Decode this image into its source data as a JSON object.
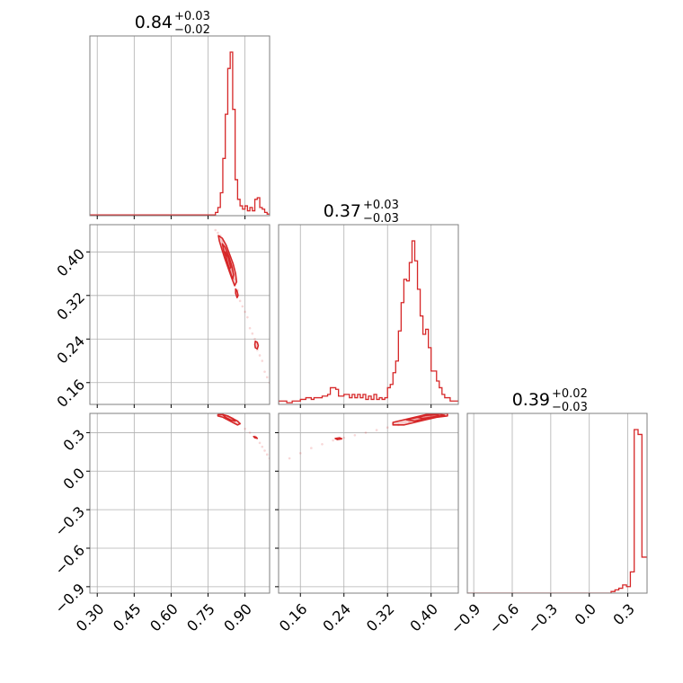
{
  "chart_data": {
    "type": "corner",
    "color": "#d62728",
    "grid": true,
    "params": [
      {
        "range": [
          0.27,
          1.0
        ],
        "ticks": [
          0.3,
          0.45,
          0.6,
          0.75,
          0.9
        ],
        "tick_labels": [
          "0.30",
          "0.45",
          "0.60",
          "0.75",
          "0.90"
        ],
        "title": {
          "value": "0.84",
          "upper": "+0.03",
          "lower": "−0.02"
        }
      },
      {
        "range": [
          0.12,
          0.45
        ],
        "ticks": [
          0.16,
          0.24,
          0.32,
          0.4
        ],
        "tick_labels": [
          "0.16",
          "0.24",
          "0.32",
          "0.40"
        ],
        "title": {
          "value": "0.37",
          "upper": "+0.03",
          "lower": "−0.03"
        }
      },
      {
        "range": [
          -0.95,
          0.45
        ],
        "ticks": [
          -0.9,
          -0.6,
          -0.3,
          0.0,
          0.3
        ],
        "tick_labels": [
          "−0.9",
          "−0.6",
          "−0.3",
          "0.0",
          "0.3"
        ],
        "title": {
          "value": "0.39",
          "upper": "+0.02",
          "lower": "−0.03"
        }
      }
    ],
    "histograms": [
      {
        "param": 0,
        "edges": [
          0.27,
          0.78,
          0.79,
          0.8,
          0.81,
          0.82,
          0.83,
          0.84,
          0.85,
          0.86,
          0.87,
          0.88,
          0.89,
          0.9,
          0.91,
          0.92,
          0.93,
          0.94,
          0.95,
          0.96,
          0.97,
          0.98,
          0.99,
          1.0
        ],
        "values": [
          0.005,
          0.02,
          0.05,
          0.14,
          0.35,
          0.62,
          0.9,
          1.0,
          0.65,
          0.22,
          0.1,
          0.06,
          0.04,
          0.06,
          0.03,
          0.05,
          0.03,
          0.1,
          0.11,
          0.05,
          0.04,
          0.02,
          0.01
        ]
      },
      {
        "param": 1,
        "edges": [
          0.12,
          0.125,
          0.13,
          0.135,
          0.14,
          0.145,
          0.15,
          0.155,
          0.16,
          0.165,
          0.17,
          0.175,
          0.18,
          0.185,
          0.19,
          0.195,
          0.2,
          0.205,
          0.21,
          0.215,
          0.22,
          0.225,
          0.23,
          0.235,
          0.24,
          0.245,
          0.25,
          0.255,
          0.26,
          0.265,
          0.27,
          0.275,
          0.28,
          0.285,
          0.29,
          0.295,
          0.3,
          0.305,
          0.31,
          0.315,
          0.32,
          0.325,
          0.33,
          0.335,
          0.34,
          0.345,
          0.35,
          0.355,
          0.36,
          0.365,
          0.37,
          0.375,
          0.38,
          0.385,
          0.39,
          0.395,
          0.4,
          0.405,
          0.41,
          0.415,
          0.42,
          0.425,
          0.43,
          0.435,
          0.44,
          0.445,
          0.45
        ],
        "values": [
          0.02,
          0.02,
          0.02,
          0.01,
          0.01,
          0.02,
          0.02,
          0.02,
          0.03,
          0.03,
          0.04,
          0.04,
          0.03,
          0.04,
          0.04,
          0.04,
          0.05,
          0.05,
          0.06,
          0.1,
          0.1,
          0.09,
          0.05,
          0.05,
          0.06,
          0.06,
          0.04,
          0.06,
          0.04,
          0.06,
          0.04,
          0.06,
          0.03,
          0.05,
          0.03,
          0.06,
          0.03,
          0.04,
          0.03,
          0.04,
          0.1,
          0.12,
          0.19,
          0.26,
          0.44,
          0.61,
          0.75,
          0.74,
          0.85,
          0.98,
          0.86,
          0.69,
          0.53,
          0.42,
          0.45,
          0.34,
          0.2,
          0.2,
          0.14,
          0.1,
          0.06,
          0.04,
          0.04,
          0.02,
          0.02,
          0.02
        ]
      },
      {
        "param": 2,
        "edges": [
          -0.95,
          0.17,
          0.2,
          0.23,
          0.26,
          0.29,
          0.32,
          0.35,
          0.38,
          0.41,
          0.44,
          0.45
        ],
        "values": [
          0.0,
          0.01,
          0.02,
          0.03,
          0.05,
          0.04,
          0.13,
          1.0,
          0.97,
          0.22,
          0.22
        ]
      }
    ],
    "panels_2d": [
      {
        "x_param": 0,
        "y_param": 1,
        "contours": [
          {
            "x": [
              0.792,
              0.808,
              0.824,
              0.838,
              0.852,
              0.862,
              0.866,
              0.858,
              0.846,
              0.832,
              0.818,
              0.806,
              0.796
            ],
            "y": [
              0.43,
              0.425,
              0.412,
              0.395,
              0.378,
              0.36,
              0.345,
              0.338,
              0.352,
              0.37,
              0.388,
              0.405,
              0.42
            ]
          },
          {
            "x": [
              0.808,
              0.82,
              0.834,
              0.846,
              0.854,
              0.85,
              0.838,
              0.826,
              0.814
            ],
            "y": [
              0.415,
              0.408,
              0.392,
              0.375,
              0.358,
              0.35,
              0.366,
              0.385,
              0.402
            ]
          },
          {
            "x": [
              0.82,
              0.832,
              0.842,
              0.836,
              0.826
            ],
            "y": [
              0.4,
              0.39,
              0.372,
              0.368,
              0.385
            ]
          },
          {
            "x": [
              0.862,
              0.868,
              0.872,
              0.868,
              0.862
            ],
            "y": [
              0.332,
              0.328,
              0.32,
              0.316,
              0.324
            ]
          },
          {
            "x": [
              0.942,
              0.95,
              0.954,
              0.95,
              0.942,
              0.94
            ],
            "y": [
              0.236,
              0.234,
              0.228,
              0.222,
              0.224,
              0.23
            ]
          }
        ],
        "samples": {
          "x": [
            0.78,
            0.79,
            0.8,
            0.81,
            0.82,
            0.83,
            0.84,
            0.85,
            0.86,
            0.87,
            0.88,
            0.89,
            0.9,
            0.91,
            0.92,
            0.93,
            0.94,
            0.95,
            0.96,
            0.97,
            0.98,
            0.99,
            1.0
          ],
          "y": [
            0.44,
            0.435,
            0.43,
            0.42,
            0.41,
            0.4,
            0.39,
            0.37,
            0.35,
            0.33,
            0.31,
            0.3,
            0.29,
            0.28,
            0.26,
            0.25,
            0.24,
            0.22,
            0.21,
            0.2,
            0.18,
            0.17,
            0.16
          ]
        }
      },
      {
        "x_param": 0,
        "y_param": 2,
        "contours": [
          {
            "x": [
              0.79,
              0.81,
              0.83,
              0.85,
              0.87,
              0.88,
              0.87,
              0.85,
              0.83,
              0.81,
              0.79
            ],
            "y": [
              0.44,
              0.44,
              0.43,
              0.41,
              0.39,
              0.37,
              0.36,
              0.38,
              0.4,
              0.42,
              0.43
            ]
          },
          {
            "x": [
              0.81,
              0.83,
              0.85,
              0.86,
              0.84,
              0.82
            ],
            "y": [
              0.44,
              0.43,
              0.41,
              0.39,
              0.4,
              0.42
            ]
          },
          {
            "x": [
              0.935,
              0.945,
              0.95,
              0.94
            ],
            "y": [
              0.27,
              0.265,
              0.255,
              0.26
            ]
          }
        ],
        "samples": {
          "x": [
            0.8,
            0.82,
            0.85,
            0.88,
            0.9,
            0.92,
            0.94,
            0.96,
            0.97,
            0.98,
            0.99,
            1.0
          ],
          "y": [
            0.44,
            0.43,
            0.41,
            0.37,
            0.33,
            0.3,
            0.27,
            0.22,
            0.19,
            0.16,
            0.13,
            0.1
          ]
        }
      },
      {
        "x_param": 1,
        "y_param": 2,
        "contours": [
          {
            "x": [
              0.33,
              0.35,
              0.37,
              0.39,
              0.41,
              0.43,
              0.43,
              0.41,
              0.39,
              0.37,
              0.35,
              0.33
            ],
            "y": [
              0.38,
              0.4,
              0.42,
              0.44,
              0.45,
              0.45,
              0.43,
              0.42,
              0.4,
              0.38,
              0.36,
              0.36
            ]
          },
          {
            "x": [
              0.355,
              0.375,
              0.395,
              0.415,
              0.425,
              0.41,
              0.39,
              0.37
            ],
            "y": [
              0.4,
              0.42,
              0.44,
              0.445,
              0.435,
              0.425,
              0.41,
              0.39
            ]
          },
          {
            "x": [
              0.375,
              0.39,
              0.41,
              0.415,
              0.4,
              0.385
            ],
            "y": [
              0.42,
              0.435,
              0.44,
              0.43,
              0.42,
              0.41
            ]
          },
          {
            "x": [
              0.224,
              0.232,
              0.236,
              0.228
            ],
            "y": [
              0.255,
              0.26,
              0.252,
              0.246
            ]
          }
        ],
        "samples": {
          "x": [
            0.14,
            0.16,
            0.18,
            0.2,
            0.22,
            0.24,
            0.26,
            0.28,
            0.3,
            0.32,
            0.34,
            0.36
          ],
          "y": [
            0.1,
            0.14,
            0.18,
            0.21,
            0.24,
            0.26,
            0.28,
            0.3,
            0.32,
            0.34,
            0.36,
            0.38
          ]
        }
      }
    ]
  }
}
